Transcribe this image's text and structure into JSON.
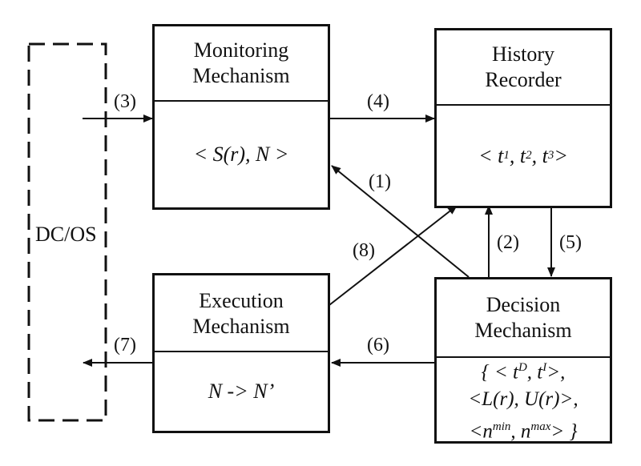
{
  "left_panel": {
    "label": "DC/OS"
  },
  "boxes": {
    "monitoring": {
      "title_line1": "Monitoring",
      "title_line2": "Mechanism",
      "content": "< S(r), N >"
    },
    "history": {
      "title_line1": "History",
      "title_line2": "Recorder",
      "content_prefix": "< t",
      "t1": "1",
      "sep1": ", t",
      "t2": "2",
      "sep2": ", t",
      "t3": "3",
      "content_suffix": " >"
    },
    "execution": {
      "title_line1": "Execution",
      "title_line2": "Mechanism",
      "content": "N -> N’"
    },
    "decision": {
      "title_line1": "Decision",
      "title_line2": "Mechanism",
      "line1_a": "{ < t",
      "line1_sup1": "D",
      "line1_b": ", t",
      "line1_sup2": "I",
      "line1_c": ">,",
      "line2": "<L(r), U(r)>,",
      "line3_a": "<n",
      "line3_sup1": "min",
      "line3_b": ", n",
      "line3_sup2": "max",
      "line3_c": "> }"
    }
  },
  "arrows": {
    "a1": "(1)",
    "a2": "(2)",
    "a3": "(3)",
    "a4": "(4)",
    "a5": "(5)",
    "a6": "(6)",
    "a7": "(7)",
    "a8": "(8)"
  }
}
